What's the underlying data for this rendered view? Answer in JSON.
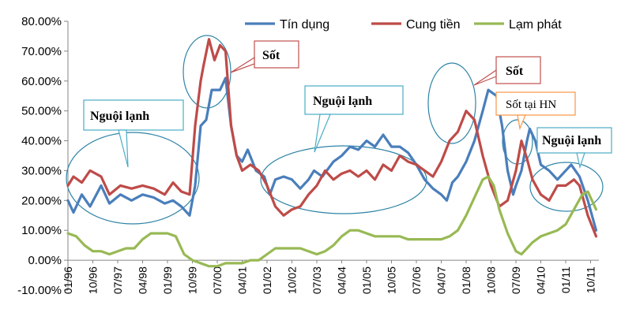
{
  "chart_data": {
    "type": "line",
    "title": "",
    "xlabel": "",
    "ylabel": "",
    "x_range": [
      "1996-01",
      "2011-12"
    ],
    "ylim": [
      -10,
      80
    ],
    "y_ticks": [
      -10,
      0,
      10,
      20,
      30,
      40,
      50,
      60,
      70,
      80
    ],
    "y_tick_labels": [
      "-10.00%",
      "0.00%",
      "10.00%",
      "20.00%",
      "30.00%",
      "40.00%",
      "50.00%",
      "60.00%",
      "70.00%",
      "80.00%"
    ],
    "x_tick_labels": [
      "01/96",
      "10/96",
      "07/97",
      "04/98",
      "01/99",
      "10/99",
      "07/00",
      "04/01",
      "01/02",
      "10/02",
      "07/03",
      "04/04",
      "01/05",
      "10/05",
      "07/06",
      "04/07",
      "01/08",
      "10/08",
      "07/09",
      "04/10",
      "01/11",
      "10/11"
    ],
    "grid": false,
    "legend_position": "top",
    "series": [
      {
        "name": "Tín dụng",
        "color": "#4a7ebb",
        "points": [
          [
            "1996-01",
            20
          ],
          [
            "1996-03",
            16
          ],
          [
            "1996-06",
            22
          ],
          [
            "1996-09",
            18
          ],
          [
            "1997-01",
            25
          ],
          [
            "1997-04",
            19
          ],
          [
            "1997-08",
            22
          ],
          [
            "1997-12",
            20
          ],
          [
            "1998-04",
            22
          ],
          [
            "1998-08",
            21
          ],
          [
            "1998-12",
            19
          ],
          [
            "1999-03",
            20
          ],
          [
            "1999-06",
            18
          ],
          [
            "1999-09",
            15
          ],
          [
            "1999-11",
            25
          ],
          [
            "2000-01",
            45
          ],
          [
            "2000-03",
            47
          ],
          [
            "2000-05",
            57
          ],
          [
            "2000-08",
            57
          ],
          [
            "2000-10",
            61
          ],
          [
            "2000-12",
            45
          ],
          [
            "2001-02",
            35
          ],
          [
            "2001-04",
            33
          ],
          [
            "2001-06",
            37
          ],
          [
            "2001-09",
            30
          ],
          [
            "2001-12",
            28
          ],
          [
            "2002-02",
            22
          ],
          [
            "2002-04",
            27
          ],
          [
            "2002-07",
            28
          ],
          [
            "2002-10",
            27
          ],
          [
            "2003-01",
            24
          ],
          [
            "2003-04",
            27
          ],
          [
            "2003-06",
            30
          ],
          [
            "2003-09",
            28
          ],
          [
            "2004-01",
            33
          ],
          [
            "2004-04",
            35
          ],
          [
            "2004-07",
            38
          ],
          [
            "2004-10",
            37
          ],
          [
            "2005-01",
            40
          ],
          [
            "2005-04",
            38
          ],
          [
            "2005-07",
            42
          ],
          [
            "2005-10",
            38
          ],
          [
            "2006-01",
            38
          ],
          [
            "2006-04",
            36
          ],
          [
            "2006-07",
            32
          ],
          [
            "2006-10",
            27
          ],
          [
            "2007-01",
            24
          ],
          [
            "2007-04",
            22
          ],
          [
            "2007-06",
            20
          ],
          [
            "2007-08",
            26
          ],
          [
            "2007-10",
            28
          ],
          [
            "2008-01",
            33
          ],
          [
            "2008-04",
            40
          ],
          [
            "2008-07",
            50
          ],
          [
            "2008-09",
            57
          ],
          [
            "2008-12",
            55
          ],
          [
            "2009-02",
            45
          ],
          [
            "2009-04",
            30
          ],
          [
            "2009-06",
            22
          ],
          [
            "2009-07",
            25
          ],
          [
            "2009-09",
            30
          ],
          [
            "2009-11",
            40
          ],
          [
            "2009-12",
            44
          ],
          [
            "2010-02",
            40
          ],
          [
            "2010-04",
            32
          ],
          [
            "2010-07",
            30
          ],
          [
            "2010-10",
            27
          ],
          [
            "2011-01",
            30
          ],
          [
            "2011-03",
            32
          ],
          [
            "2011-06",
            28
          ],
          [
            "2011-09",
            20
          ],
          [
            "2011-12",
            10
          ]
        ]
      },
      {
        "name": "Cung tiền",
        "color": "#be4b48",
        "points": [
          [
            "1996-01",
            25
          ],
          [
            "1996-03",
            28
          ],
          [
            "1996-06",
            26
          ],
          [
            "1996-09",
            30
          ],
          [
            "1997-01",
            28
          ],
          [
            "1997-04",
            22
          ],
          [
            "1997-08",
            25
          ],
          [
            "1997-12",
            24
          ],
          [
            "1998-04",
            25
          ],
          [
            "1998-08",
            24
          ],
          [
            "1998-12",
            22
          ],
          [
            "1999-03",
            26
          ],
          [
            "1999-06",
            23
          ],
          [
            "1999-09",
            22
          ],
          [
            "1999-11",
            45
          ],
          [
            "2000-01",
            60
          ],
          [
            "2000-02",
            65
          ],
          [
            "2000-04",
            74
          ],
          [
            "2000-06",
            67
          ],
          [
            "2000-08",
            72
          ],
          [
            "2000-10",
            70
          ],
          [
            "2000-12",
            45
          ],
          [
            "2001-02",
            35
          ],
          [
            "2001-04",
            30
          ],
          [
            "2001-07",
            32
          ],
          [
            "2001-10",
            30
          ],
          [
            "2002-01",
            25
          ],
          [
            "2002-04",
            18
          ],
          [
            "2002-07",
            15
          ],
          [
            "2002-10",
            17
          ],
          [
            "2003-01",
            18
          ],
          [
            "2003-04",
            22
          ],
          [
            "2003-07",
            25
          ],
          [
            "2003-10",
            30
          ],
          [
            "2004-01",
            27
          ],
          [
            "2004-04",
            29
          ],
          [
            "2004-07",
            30
          ],
          [
            "2004-10",
            28
          ],
          [
            "2005-01",
            30
          ],
          [
            "2005-04",
            27
          ],
          [
            "2005-07",
            32
          ],
          [
            "2005-10",
            30
          ],
          [
            "2006-01",
            35
          ],
          [
            "2006-04",
            33
          ],
          [
            "2006-07",
            32
          ],
          [
            "2006-10",
            30
          ],
          [
            "2007-01",
            28
          ],
          [
            "2007-04",
            33
          ],
          [
            "2007-07",
            40
          ],
          [
            "2007-10",
            43
          ],
          [
            "2008-01",
            50
          ],
          [
            "2008-04",
            47
          ],
          [
            "2008-07",
            35
          ],
          [
            "2008-10",
            25
          ],
          [
            "2009-01",
            18
          ],
          [
            "2009-04",
            20
          ],
          [
            "2009-07",
            30
          ],
          [
            "2009-09",
            40
          ],
          [
            "2009-11",
            34
          ],
          [
            "2010-01",
            27
          ],
          [
            "2010-04",
            22
          ],
          [
            "2010-07",
            20
          ],
          [
            "2010-10",
            25
          ],
          [
            "2011-01",
            25
          ],
          [
            "2011-04",
            27
          ],
          [
            "2011-06",
            25
          ],
          [
            "2011-09",
            15
          ],
          [
            "2011-12",
            8
          ]
        ]
      },
      {
        "name": "Lạm phát",
        "color": "#98b954",
        "points": [
          [
            "1996-01",
            9
          ],
          [
            "1996-04",
            8
          ],
          [
            "1996-07",
            5
          ],
          [
            "1996-10",
            3
          ],
          [
            "1997-01",
            3
          ],
          [
            "1997-04",
            2
          ],
          [
            "1997-07",
            3
          ],
          [
            "1997-10",
            4
          ],
          [
            "1998-01",
            4
          ],
          [
            "1998-04",
            7
          ],
          [
            "1998-07",
            9
          ],
          [
            "1998-10",
            9
          ],
          [
            "1999-01",
            9
          ],
          [
            "1999-04",
            8
          ],
          [
            "1999-07",
            2
          ],
          [
            "1999-10",
            0
          ],
          [
            "2000-01",
            -1
          ],
          [
            "2000-04",
            -2
          ],
          [
            "2000-07",
            -2
          ],
          [
            "2000-10",
            -1
          ],
          [
            "2001-01",
            -1
          ],
          [
            "2001-04",
            -1
          ],
          [
            "2001-07",
            0
          ],
          [
            "2001-10",
            0
          ],
          [
            "2002-01",
            2
          ],
          [
            "2002-04",
            4
          ],
          [
            "2002-07",
            4
          ],
          [
            "2002-10",
            4
          ],
          [
            "2003-01",
            4
          ],
          [
            "2003-04",
            3
          ],
          [
            "2003-07",
            2
          ],
          [
            "2003-10",
            3
          ],
          [
            "2004-01",
            5
          ],
          [
            "2004-04",
            8
          ],
          [
            "2004-07",
            10
          ],
          [
            "2004-10",
            10
          ],
          [
            "2005-01",
            9
          ],
          [
            "2005-04",
            8
          ],
          [
            "2005-07",
            8
          ],
          [
            "2005-10",
            8
          ],
          [
            "2006-01",
            8
          ],
          [
            "2006-04",
            7
          ],
          [
            "2006-07",
            7
          ],
          [
            "2006-10",
            7
          ],
          [
            "2007-01",
            7
          ],
          [
            "2007-04",
            7
          ],
          [
            "2007-07",
            8
          ],
          [
            "2007-10",
            10
          ],
          [
            "2008-01",
            15
          ],
          [
            "2008-04",
            21
          ],
          [
            "2008-07",
            27
          ],
          [
            "2008-09",
            28
          ],
          [
            "2008-11",
            25
          ],
          [
            "2009-01",
            17
          ],
          [
            "2009-04",
            9
          ],
          [
            "2009-07",
            3
          ],
          [
            "2009-09",
            2
          ],
          [
            "2009-11",
            4
          ],
          [
            "2010-01",
            6
          ],
          [
            "2010-04",
            8
          ],
          [
            "2010-07",
            9
          ],
          [
            "2010-10",
            10
          ],
          [
            "2011-01",
            12
          ],
          [
            "2011-04",
            17
          ],
          [
            "2011-07",
            22
          ],
          [
            "2011-09",
            23
          ],
          [
            "2011-11",
            19
          ],
          [
            "2011-12",
            17
          ]
        ]
      }
    ],
    "annotations": [
      {
        "id": "cold-1",
        "text": "Nguội lạnh",
        "style": "bold"
      },
      {
        "id": "hot-1",
        "text": "Sốt",
        "style": "bold"
      },
      {
        "id": "cold-2",
        "text": "Nguội lạnh",
        "style": "bold"
      },
      {
        "id": "hot-2",
        "text": "Sốt",
        "style": "bold"
      },
      {
        "id": "hot-hn",
        "text": "Sốt tại HN",
        "style": "normal"
      },
      {
        "id": "cold-3",
        "text": "Nguội lạnh",
        "style": "bold"
      }
    ]
  }
}
